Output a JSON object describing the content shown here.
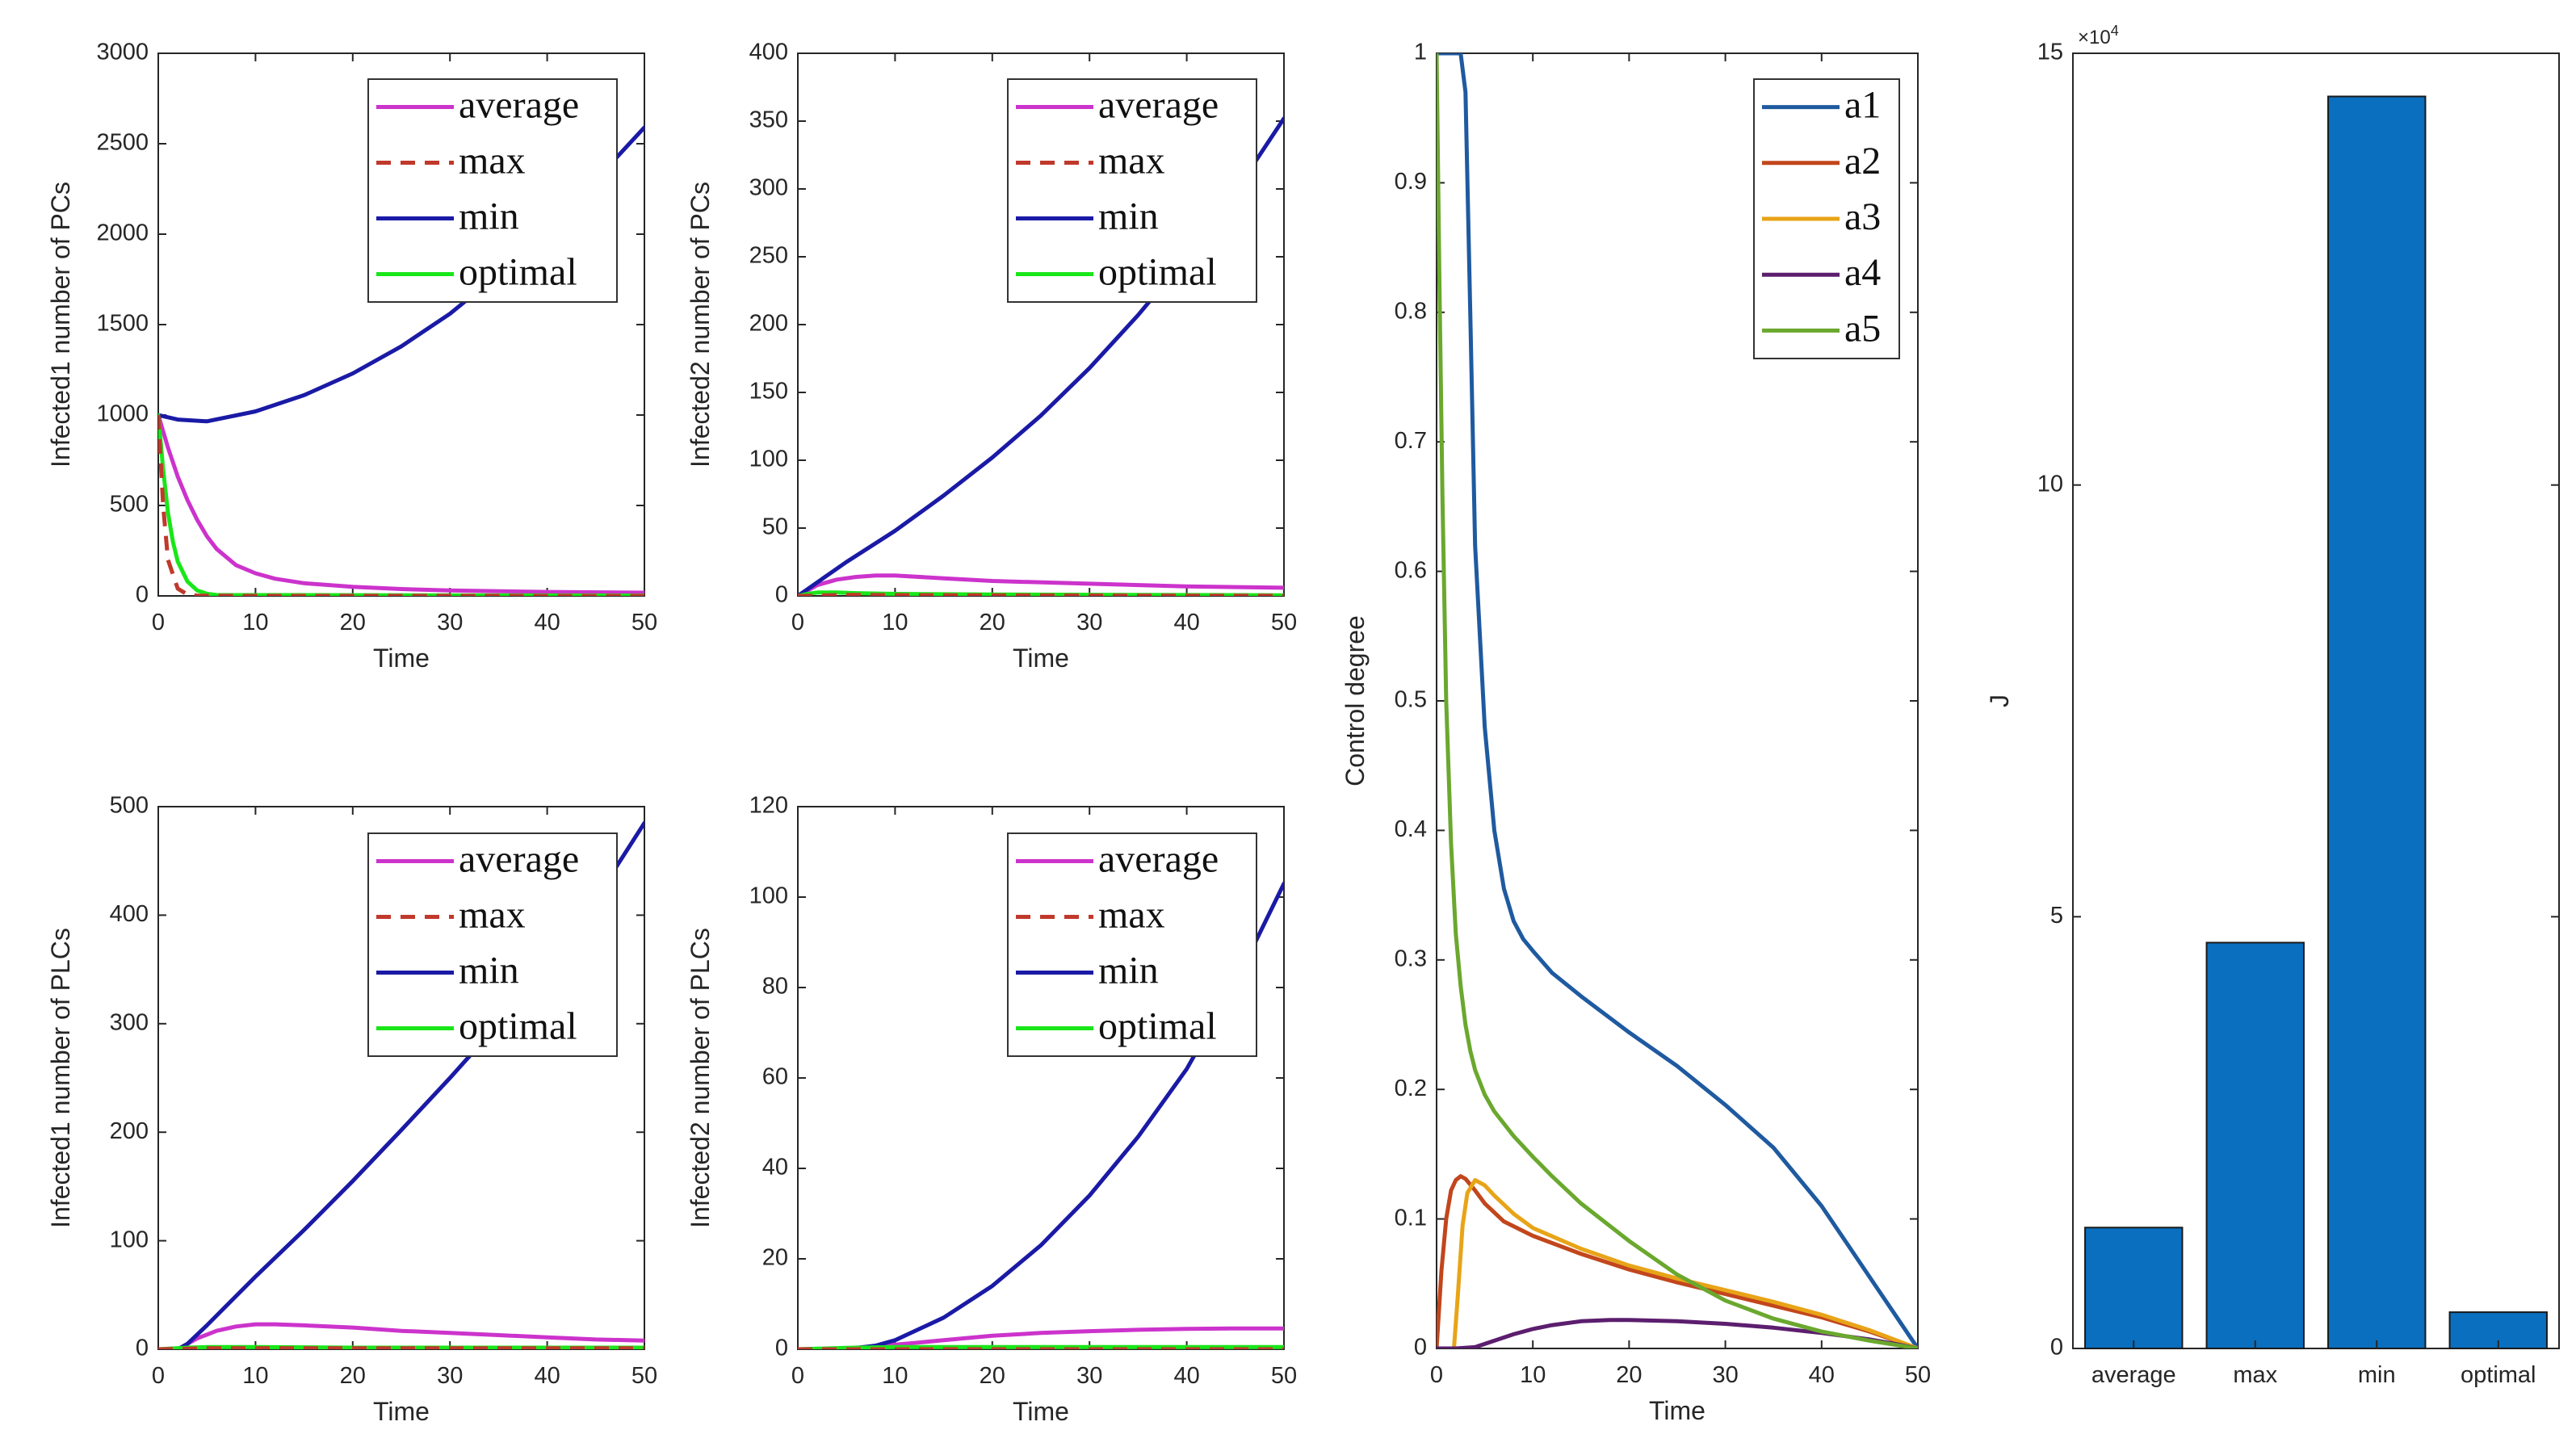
{
  "colors": {
    "magenta": "#cc33cc",
    "darkred": "#c0392b",
    "navy": "#1a1aa6",
    "green": "#19e619",
    "a1": "#1f5aa0",
    "a2": "#c2461c",
    "a3": "#e8a418",
    "a4": "#5c1e6e",
    "a5": "#6aa82e",
    "bar": "#0a6fbf",
    "axis": "#262626"
  },
  "chart_data": [
    {
      "id": "p1",
      "type": "line",
      "xlabel": "Time",
      "ylabel": "Infected1 number of PCs",
      "xlim": [
        0,
        50
      ],
      "ylim": [
        0,
        3000
      ],
      "xticks": [
        0,
        10,
        20,
        30,
        40,
        50
      ],
      "yticks": [
        0,
        500,
        1000,
        1500,
        2000,
        2500,
        3000
      ],
      "legend": {
        "position": "top-right",
        "labels": [
          "average",
          "max",
          "min",
          "optimal"
        ]
      },
      "series": [
        {
          "name": "average",
          "color": "magenta",
          "dash": false,
          "x": [
            0,
            1,
            2,
            3,
            4,
            5,
            6,
            8,
            10,
            12,
            15,
            20,
            25,
            30,
            40,
            50
          ],
          "y": [
            1000,
            820,
            660,
            530,
            420,
            330,
            260,
            170,
            125,
            95,
            70,
            50,
            38,
            30,
            22,
            18
          ]
        },
        {
          "name": "max",
          "color": "darkred",
          "dash": true,
          "x": [
            0,
            0.5,
            1,
            2,
            3,
            4,
            5,
            50
          ],
          "y": [
            1000,
            500,
            200,
            40,
            8,
            2,
            1,
            0
          ]
        },
        {
          "name": "min",
          "color": "navy",
          "dash": false,
          "x": [
            0,
            2,
            5,
            10,
            15,
            20,
            25,
            30,
            35,
            40,
            45,
            50
          ],
          "y": [
            1000,
            975,
            965,
            1020,
            1110,
            1230,
            1380,
            1560,
            1780,
            2030,
            2300,
            2590
          ]
        },
        {
          "name": "optimal",
          "color": "green",
          "dash": false,
          "x": [
            0,
            0.5,
            1,
            1.5,
            2,
            3,
            4,
            5,
            6,
            50
          ],
          "y": [
            1000,
            700,
            460,
            300,
            190,
            80,
            30,
            12,
            5,
            2
          ]
        }
      ]
    },
    {
      "id": "p2",
      "type": "line",
      "xlabel": "Time",
      "ylabel": "Infected2 number of PCs",
      "xlim": [
        0,
        50
      ],
      "ylim": [
        0,
        400
      ],
      "xticks": [
        0,
        10,
        20,
        30,
        40,
        50
      ],
      "yticks": [
        0,
        50,
        100,
        150,
        200,
        250,
        300,
        350,
        400
      ],
      "legend": {
        "position": "top-right",
        "labels": [
          "average",
          "max",
          "min",
          "optimal"
        ]
      },
      "series": [
        {
          "name": "average",
          "color": "magenta",
          "dash": false,
          "x": [
            0,
            2,
            4,
            6,
            8,
            10,
            15,
            20,
            30,
            40,
            50
          ],
          "y": [
            0,
            8,
            12,
            14,
            15,
            15,
            13,
            11,
            9,
            7,
            6
          ]
        },
        {
          "name": "max",
          "color": "darkred",
          "dash": true,
          "x": [
            0,
            5,
            10,
            20,
            30,
            40,
            50
          ],
          "y": [
            0,
            0.8,
            0.6,
            0.4,
            0.3,
            0.2,
            0.2
          ]
        },
        {
          "name": "min",
          "color": "navy",
          "dash": false,
          "x": [
            0,
            5,
            10,
            15,
            20,
            25,
            30,
            35,
            40,
            45,
            50
          ],
          "y": [
            0,
            25,
            48,
            74,
            102,
            133,
            168,
            207,
            250,
            298,
            352
          ]
        },
        {
          "name": "optimal",
          "color": "green",
          "dash": false,
          "x": [
            0,
            1,
            2,
            4,
            6,
            10,
            20,
            50
          ],
          "y": [
            0,
            1.5,
            2.5,
            2.5,
            2,
            1.5,
            1,
            0.5
          ]
        }
      ]
    },
    {
      "id": "p3",
      "type": "line",
      "xlabel": "Time",
      "ylabel": "Infected1 number of PLCs",
      "xlim": [
        0,
        50
      ],
      "ylim": [
        0,
        500
      ],
      "xticks": [
        0,
        10,
        20,
        30,
        40,
        50
      ],
      "yticks": [
        0,
        100,
        200,
        300,
        400,
        500
      ],
      "legend": {
        "position": "top-right",
        "labels": [
          "average",
          "max",
          "min",
          "optimal"
        ]
      },
      "series": [
        {
          "name": "average",
          "color": "magenta",
          "dash": false,
          "x": [
            0,
            2,
            4,
            6,
            8,
            10,
            12,
            15,
            20,
            25,
            30,
            35,
            40,
            45,
            50
          ],
          "y": [
            0,
            0,
            10,
            17,
            21,
            23,
            23,
            22,
            20,
            17,
            15,
            13,
            11,
            9,
            8
          ]
        },
        {
          "name": "max",
          "color": "darkred",
          "dash": true,
          "x": [
            0,
            5,
            10,
            20,
            30,
            40,
            50
          ],
          "y": [
            0,
            1,
            1,
            1,
            1,
            1,
            1
          ]
        },
        {
          "name": "min",
          "color": "navy",
          "dash": false,
          "x": [
            0,
            2,
            3,
            5,
            10,
            15,
            20,
            25,
            30,
            35,
            40,
            45,
            50
          ],
          "y": [
            0,
            0,
            5,
            22,
            67,
            110,
            155,
            202,
            250,
            300,
            355,
            415,
            485
          ]
        },
        {
          "name": "optimal",
          "color": "green",
          "dash": false,
          "x": [
            0,
            3,
            5,
            10,
            20,
            30,
            40,
            50
          ],
          "y": [
            0,
            1.5,
            2,
            2,
            1.5,
            1.5,
            1.5,
            1.5
          ]
        }
      ]
    },
    {
      "id": "p4",
      "type": "line",
      "xlabel": "Time",
      "ylabel": "Infected2 number of PLCs",
      "xlim": [
        0,
        50
      ],
      "ylim": [
        0,
        120
      ],
      "xticks": [
        0,
        10,
        20,
        30,
        40,
        50
      ],
      "yticks": [
        0,
        20,
        40,
        60,
        80,
        100,
        120
      ],
      "legend": {
        "position": "top-right",
        "labels": [
          "average",
          "max",
          "min",
          "optimal"
        ]
      },
      "series": [
        {
          "name": "average",
          "color": "magenta",
          "dash": false,
          "x": [
            0,
            5,
            10,
            15,
            20,
            25,
            30,
            35,
            40,
            45,
            50
          ],
          "y": [
            0,
            0.2,
            1,
            2,
            3,
            3.6,
            4,
            4.3,
            4.5,
            4.6,
            4.6
          ]
        },
        {
          "name": "max",
          "color": "darkred",
          "dash": true,
          "x": [
            0,
            50
          ],
          "y": [
            0,
            0
          ]
        },
        {
          "name": "min",
          "color": "navy",
          "dash": false,
          "x": [
            0,
            5,
            8,
            10,
            15,
            20,
            25,
            30,
            35,
            40,
            45,
            50
          ],
          "y": [
            0,
            0,
            0.8,
            2,
            7,
            14,
            23,
            34,
            47,
            62,
            81,
            103
          ]
        },
        {
          "name": "optimal",
          "color": "green",
          "dash": false,
          "x": [
            0,
            5,
            10,
            20,
            30,
            40,
            50
          ],
          "y": [
            0,
            0.3,
            0.5,
            0.5,
            0.5,
            0.5,
            0.5
          ]
        }
      ]
    },
    {
      "id": "p5",
      "type": "line",
      "xlabel": "Time",
      "ylabel": "Control degree",
      "xlim": [
        0,
        50
      ],
      "ylim": [
        0,
        1
      ],
      "xticks": [
        0,
        10,
        20,
        30,
        40,
        50
      ],
      "yticks": [
        0,
        0.1,
        0.2,
        0.3,
        0.4,
        0.5,
        0.6,
        0.7,
        0.8,
        0.9,
        1
      ],
      "legend": {
        "position": "top-right",
        "labels": [
          "a1",
          "a2",
          "a3",
          "a4",
          "a5"
        ]
      },
      "series": [
        {
          "name": "a1",
          "color": "a1",
          "dash": false,
          "x": [
            0,
            2.5,
            3,
            3.5,
            4,
            5,
            6,
            7,
            8,
            9,
            10,
            12,
            15,
            20,
            25,
            30,
            35,
            40,
            43,
            46,
            48,
            50
          ],
          "y": [
            1,
            1,
            0.97,
            0.8,
            0.62,
            0.48,
            0.4,
            0.355,
            0.33,
            0.316,
            0.307,
            0.29,
            0.272,
            0.244,
            0.218,
            0.188,
            0.155,
            0.11,
            0.077,
            0.044,
            0.022,
            0
          ]
        },
        {
          "name": "a2",
          "color": "a2",
          "dash": false,
          "x": [
            0,
            0.5,
            1,
            1.5,
            2,
            2.5,
            3,
            4,
            5,
            7,
            10,
            15,
            20,
            25,
            30,
            35,
            40,
            45,
            50
          ],
          "y": [
            0,
            0.06,
            0.1,
            0.122,
            0.13,
            0.133,
            0.131,
            0.122,
            0.112,
            0.098,
            0.087,
            0.073,
            0.061,
            0.051,
            0.042,
            0.033,
            0.024,
            0.013,
            0
          ]
        },
        {
          "name": "a3",
          "color": "a3",
          "dash": false,
          "x": [
            0,
            1.8,
            2.2,
            2.7,
            3.2,
            4,
            5,
            6,
            8,
            10,
            15,
            20,
            25,
            30,
            35,
            40,
            45,
            50
          ],
          "y": [
            0,
            0,
            0.04,
            0.095,
            0.12,
            0.13,
            0.126,
            0.118,
            0.104,
            0.093,
            0.077,
            0.064,
            0.054,
            0.045,
            0.036,
            0.026,
            0.014,
            0
          ]
        },
        {
          "name": "a4",
          "color": "a4",
          "dash": false,
          "x": [
            0,
            2,
            4,
            6,
            8,
            10,
            12,
            15,
            18,
            20,
            25,
            30,
            35,
            40,
            45,
            48,
            50
          ],
          "y": [
            0,
            0,
            0.001,
            0.006,
            0.011,
            0.015,
            0.018,
            0.021,
            0.022,
            0.022,
            0.021,
            0.019,
            0.016,
            0.012,
            0.007,
            0.003,
            0
          ]
        },
        {
          "name": "a5",
          "color": "a5",
          "dash": false,
          "x": [
            0,
            0.3,
            0.6,
            1,
            1.5,
            2,
            2.5,
            3,
            3.5,
            4,
            5,
            6,
            8,
            10,
            12,
            15,
            20,
            25,
            30,
            35,
            40,
            45,
            50
          ],
          "y": [
            1,
            0.82,
            0.66,
            0.5,
            0.39,
            0.32,
            0.28,
            0.25,
            0.23,
            0.215,
            0.196,
            0.183,
            0.164,
            0.148,
            0.133,
            0.112,
            0.083,
            0.057,
            0.037,
            0.023,
            0.013,
            0.006,
            0
          ]
        }
      ]
    },
    {
      "id": "p6",
      "type": "bar",
      "ylabel": "J",
      "categories": [
        "average",
        "max",
        "min",
        "optimal"
      ],
      "values": [
        14000,
        47000,
        145000,
        4200
      ],
      "ylim": [
        0,
        150000
      ],
      "yticks": [
        0,
        5,
        10,
        15
      ],
      "exponent_label": "×10",
      "exponent_power": "4",
      "color": "bar"
    }
  ]
}
